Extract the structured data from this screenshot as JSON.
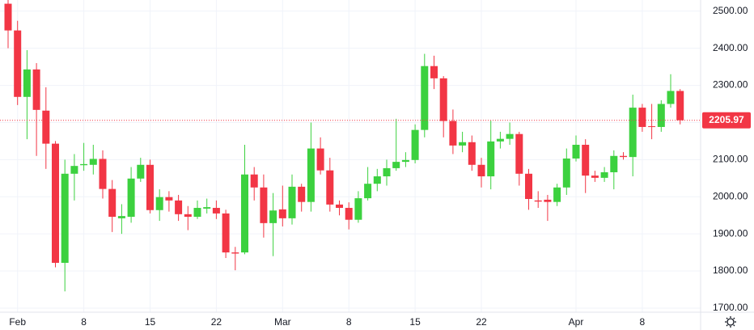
{
  "chart_data": {
    "type": "candlestick",
    "categories": [
      null,
      "Feb",
      null,
      null,
      null,
      null,
      null,
      null,
      "8",
      null,
      null,
      null,
      null,
      null,
      null,
      "15",
      null,
      null,
      null,
      null,
      null,
      null,
      "22",
      null,
      null,
      null,
      null,
      null,
      null,
      "Mar",
      null,
      null,
      null,
      null,
      null,
      null,
      "8",
      null,
      null,
      null,
      null,
      null,
      null,
      "15",
      null,
      null,
      null,
      null,
      null,
      null,
      "22",
      null,
      null,
      null,
      null,
      null,
      null,
      null,
      null,
      null,
      "Apr",
      null,
      null,
      null,
      null,
      null,
      null,
      "8",
      null,
      null,
      null,
      null
    ],
    "open": [
      2520,
      2448,
      2269,
      2343,
      2232,
      2143,
      1822,
      2062,
      2085,
      2086,
      2102,
      2021,
      1942,
      1946,
      2049,
      2086,
      1964,
      1999,
      1990,
      1953,
      1946,
      1968,
      1970,
      1955,
      1850,
      1850,
      2060,
      2025,
      1929,
      1966,
      1942,
      2027,
      1986,
      2130,
      2071,
      1979,
      1970,
      1938,
      1996,
      2035,
      2055,
      2077,
      2094,
      2099,
      2180,
      2352,
      2319,
      2204,
      2138,
      2147,
      2086,
      2055,
      2149,
      2156,
      2169,
      2062,
      1990,
      1992,
      1986,
      2025,
      2103,
      2140,
      2057,
      2051,
      2066,
      2110,
      2107,
      2240,
      2190,
      2188,
      2250,
      2285
    ],
    "high": [
      2530,
      2474,
      2395,
      2360,
      2295,
      2150,
      2100,
      2115,
      2145,
      2140,
      2125,
      2045,
      1980,
      2080,
      2105,
      2100,
      2020,
      2015,
      2005,
      1975,
      1990,
      1995,
      1990,
      1965,
      1865,
      2140,
      2080,
      2060,
      2010,
      2030,
      2060,
      2035,
      2200,
      2160,
      2105,
      1990,
      1985,
      2015,
      2080,
      2075,
      2100,
      2210,
      2120,
      2195,
      2385,
      2380,
      2325,
      2235,
      2175,
      2165,
      2105,
      2205,
      2175,
      2200,
      2175,
      2075,
      2015,
      2005,
      2035,
      2130,
      2165,
      2155,
      2070,
      2080,
      2125,
      2120,
      2275,
      2250,
      2250,
      2260,
      2330,
      2290
    ],
    "low": [
      2400,
      2247,
      2155,
      2110,
      2075,
      1810,
      1745,
      1990,
      2070,
      2060,
      1995,
      1905,
      1900,
      1930,
      2040,
      1955,
      1935,
      1960,
      1935,
      1910,
      1940,
      1955,
      1940,
      1835,
      1802,
      1845,
      1990,
      1890,
      1840,
      1920,
      1925,
      1960,
      1960,
      2060,
      1960,
      1950,
      1912,
      1930,
      1990,
      2015,
      2030,
      2070,
      2080,
      2090,
      2160,
      2290,
      2160,
      2115,
      2120,
      2070,
      2025,
      2020,
      2130,
      2140,
      2030,
      1965,
      1970,
      1935,
      1975,
      2005,
      2095,
      2010,
      2040,
      2040,
      2020,
      2100,
      2055,
      2175,
      2155,
      2175,
      2240,
      2195
    ],
    "close": [
      2448,
      2269,
      2343,
      2234,
      2143,
      1822,
      2062,
      2083,
      2088,
      2102,
      2021,
      1946,
      1948,
      2049,
      2086,
      1964,
      1999,
      1990,
      1953,
      1946,
      1970,
      1972,
      1955,
      1850,
      1847,
      2060,
      2025,
      1929,
      1963,
      1942,
      2027,
      1986,
      2130,
      2071,
      1979,
      1970,
      1938,
      1996,
      2035,
      2055,
      2077,
      2094,
      2099,
      2180,
      2352,
      2319,
      2204,
      2138,
      2147,
      2086,
      2055,
      2149,
      2156,
      2169,
      2062,
      1994,
      1987,
      1986,
      2025,
      2103,
      2140,
      2057,
      2051,
      2066,
      2110,
      2107,
      2240,
      2188,
      2188,
      2250,
      2285,
      2205.97
    ],
    "up_color": "#3cd13f",
    "down_color": "#f23645",
    "last_price": 2205.97,
    "ylim": [
      1689,
      2530
    ],
    "yticks": [
      {
        "value": 1700,
        "label": "1700.00"
      },
      {
        "value": 1800,
        "label": "1800.00"
      },
      {
        "value": 1900,
        "label": "1900.00"
      },
      {
        "value": 2000,
        "label": "2000.00"
      },
      {
        "value": 2100,
        "label": "2100.00"
      },
      {
        "value": 2200,
        "label": "2200.00"
      },
      {
        "value": 2300,
        "label": "2300.00"
      },
      {
        "value": 2400,
        "label": "2400.00"
      },
      {
        "value": 2500,
        "label": "2500.00"
      }
    ],
    "grid": true
  }
}
